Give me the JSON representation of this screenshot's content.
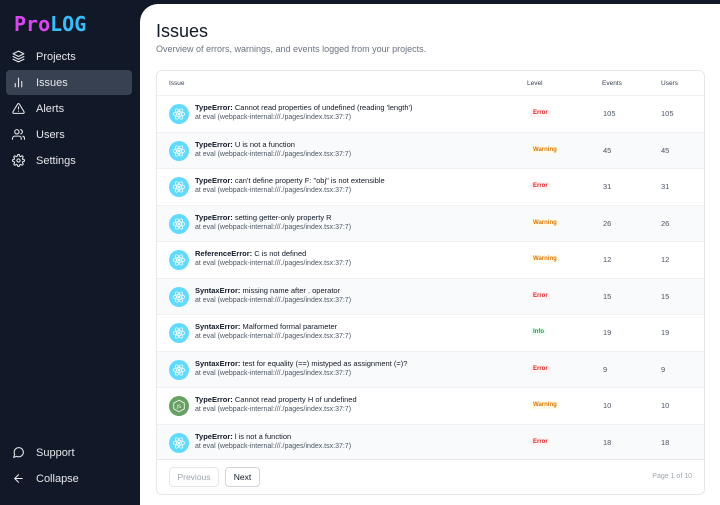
{
  "logo": {
    "part1": "Pro",
    "part2": "LOG"
  },
  "sidebar": {
    "items": [
      {
        "label": "Projects",
        "icon": "layers-icon"
      },
      {
        "label": "Issues",
        "icon": "bar-chart-icon",
        "active": true
      },
      {
        "label": "Alerts",
        "icon": "alert-triangle-icon"
      },
      {
        "label": "Users",
        "icon": "users-icon"
      },
      {
        "label": "Settings",
        "icon": "gear-icon"
      }
    ],
    "bottom": [
      {
        "label": "Support",
        "icon": "chat-icon"
      },
      {
        "label": "Collapse",
        "icon": "arrow-left-icon"
      }
    ]
  },
  "page": {
    "title": "Issues",
    "subtitle": "Overview of errors, warnings, and events logged from your projects."
  },
  "table": {
    "headers": {
      "issue": "Issue",
      "level": "Level",
      "events": "Events",
      "users": "Users"
    },
    "rows": [
      {
        "icon": "react",
        "type": "TypeError:",
        "message": "Cannot read properties of undefined (reading 'length')",
        "source": "at eval (webpack-internal:///./pages/index.tsx:37:7)",
        "level": "Error",
        "events": "105",
        "users": "105"
      },
      {
        "icon": "react",
        "type": "TypeError:",
        "message": "U is not a function",
        "source": "at eval (webpack-internal:///./pages/index.tsx:37:7)",
        "level": "Warning",
        "events": "45",
        "users": "45"
      },
      {
        "icon": "react",
        "type": "TypeError:",
        "message": "can't define property F: \"obj\" is not extensible",
        "source": "at eval (webpack-internal:///./pages/index.tsx:37:7)",
        "level": "Error",
        "events": "31",
        "users": "31"
      },
      {
        "icon": "react",
        "type": "TypeError:",
        "message": "setting getter-only property R",
        "source": "at eval (webpack-internal:///./pages/index.tsx:37:7)",
        "level": "Warning",
        "events": "26",
        "users": "26"
      },
      {
        "icon": "react",
        "type": "ReferenceError:",
        "message": "C is not defined",
        "source": "at eval (webpack-internal:///./pages/index.tsx:37:7)",
        "level": "Warning",
        "events": "12",
        "users": "12"
      },
      {
        "icon": "react",
        "type": "SyntaxError:",
        "message": "missing name after . operator",
        "source": "at eval (webpack-internal:///./pages/index.tsx:37:7)",
        "level": "Error",
        "events": "15",
        "users": "15"
      },
      {
        "icon": "react",
        "type": "SyntaxError:",
        "message": "Malformed formal parameter",
        "source": "at eval (webpack-internal:///./pages/index.tsx:37:7)",
        "level": "Info",
        "events": "19",
        "users": "19"
      },
      {
        "icon": "react",
        "type": "SyntaxError:",
        "message": "test for equality (==) mistyped as assignment (=)?",
        "source": "at eval (webpack-internal:///./pages/index.tsx:37:7)",
        "level": "Error",
        "events": "9",
        "users": "9"
      },
      {
        "icon": "node",
        "type": "TypeError:",
        "message": "Cannot read property H of undefined",
        "source": "at eval (webpack-internal:///./pages/index.tsx:37:7)",
        "level": "Warning",
        "events": "10",
        "users": "10"
      },
      {
        "icon": "react",
        "type": "TypeError:",
        "message": "l is not a function",
        "source": "at eval (webpack-internal:///./pages/index.tsx:37:7)",
        "level": "Error",
        "events": "18",
        "users": "18"
      }
    ]
  },
  "pagination": {
    "previous": "Previous",
    "next": "Next",
    "indicator": "Page 1 of 10"
  },
  "colors": {
    "sidebar_bg": "#111827",
    "active_item": "#374151",
    "error": "#dc2626",
    "warning": "#d97706",
    "info": "#16a34a",
    "react": "#61dafb",
    "node": "#68a063"
  }
}
